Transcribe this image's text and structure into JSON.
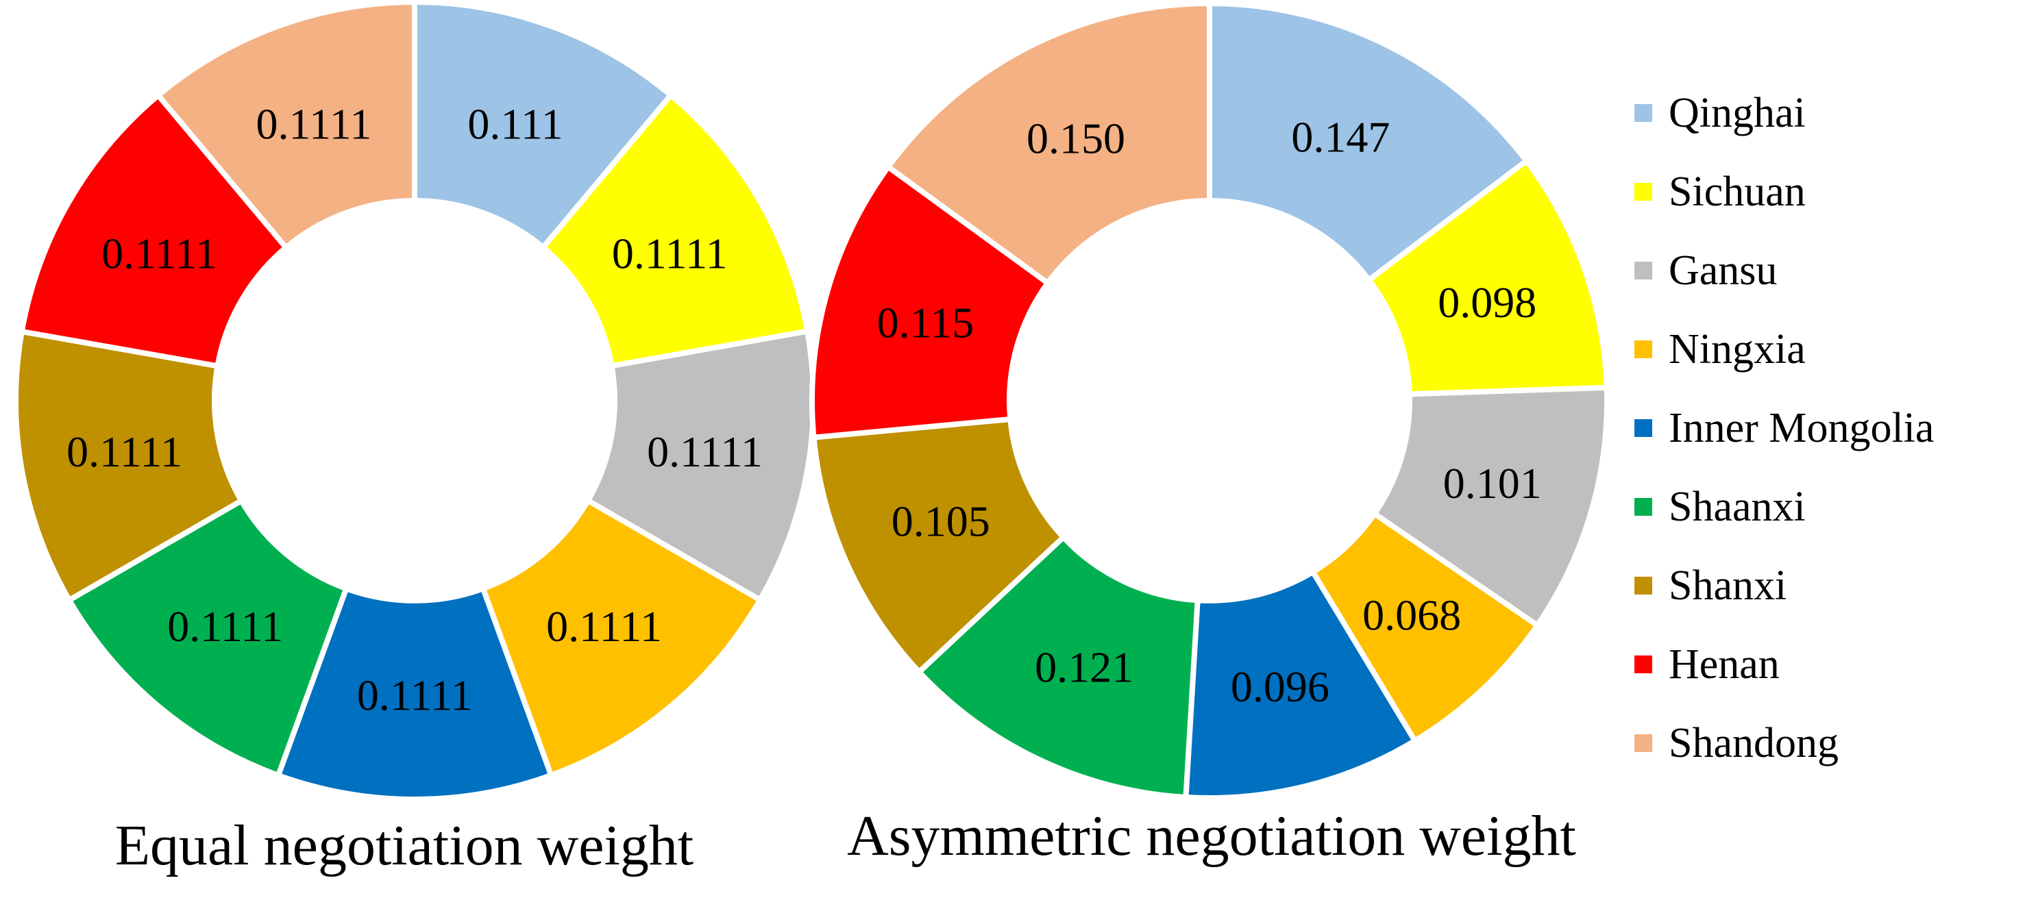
{
  "chart_data": [
    {
      "type": "pie",
      "donut": true,
      "title": "Equal negotiation weight",
      "categories": [
        "Qinghai",
        "Sichuan",
        "Gansu",
        "Ningxia",
        "Inner Mongolia",
        "Shaanxi",
        "Shanxi",
        "Henan",
        "Shandong"
      ],
      "values": [
        0.111,
        0.1111,
        0.1111,
        0.1111,
        0.1111,
        0.1111,
        0.1111,
        0.1111,
        0.1111
      ],
      "labels": [
        "0.111",
        "0.1111",
        "0.1111",
        "0.1111",
        "0.1111",
        "0.1111",
        "0.1111",
        "0.1111",
        "0.1111"
      ]
    },
    {
      "type": "pie",
      "donut": true,
      "title": "Asymmetric negotiation weight",
      "categories": [
        "Qinghai",
        "Sichuan",
        "Gansu",
        "Ningxia",
        "Inner Mongolia",
        "Shaanxi",
        "Shanxi",
        "Henan",
        "Shandong"
      ],
      "values": [
        0.147,
        0.098,
        0.101,
        0.068,
        0.096,
        0.121,
        0.105,
        0.115,
        0.15
      ],
      "labels": [
        "0.147",
        "0.098",
        "0.101",
        "0.068",
        "0.096",
        "0.121",
        "0.105",
        "0.115",
        "0.150"
      ]
    }
  ],
  "legend": {
    "placement": "right",
    "items": [
      {
        "label": "Qinghai",
        "color": "#9DC3E6"
      },
      {
        "label": "Sichuan",
        "color": "#FFFF00"
      },
      {
        "label": "Gansu",
        "color": "#BFBFBF"
      },
      {
        "label": "Ningxia",
        "color": "#FFC000"
      },
      {
        "label": "Inner Mongolia",
        "color": "#0070C0"
      },
      {
        "label": "Shaanxi",
        "color": "#00B050"
      },
      {
        "label": "Shanxi",
        "color": "#BF9000"
      },
      {
        "label": "Henan",
        "color": "#FF0000"
      },
      {
        "label": "Shandong",
        "color": "#F4B183"
      }
    ]
  }
}
